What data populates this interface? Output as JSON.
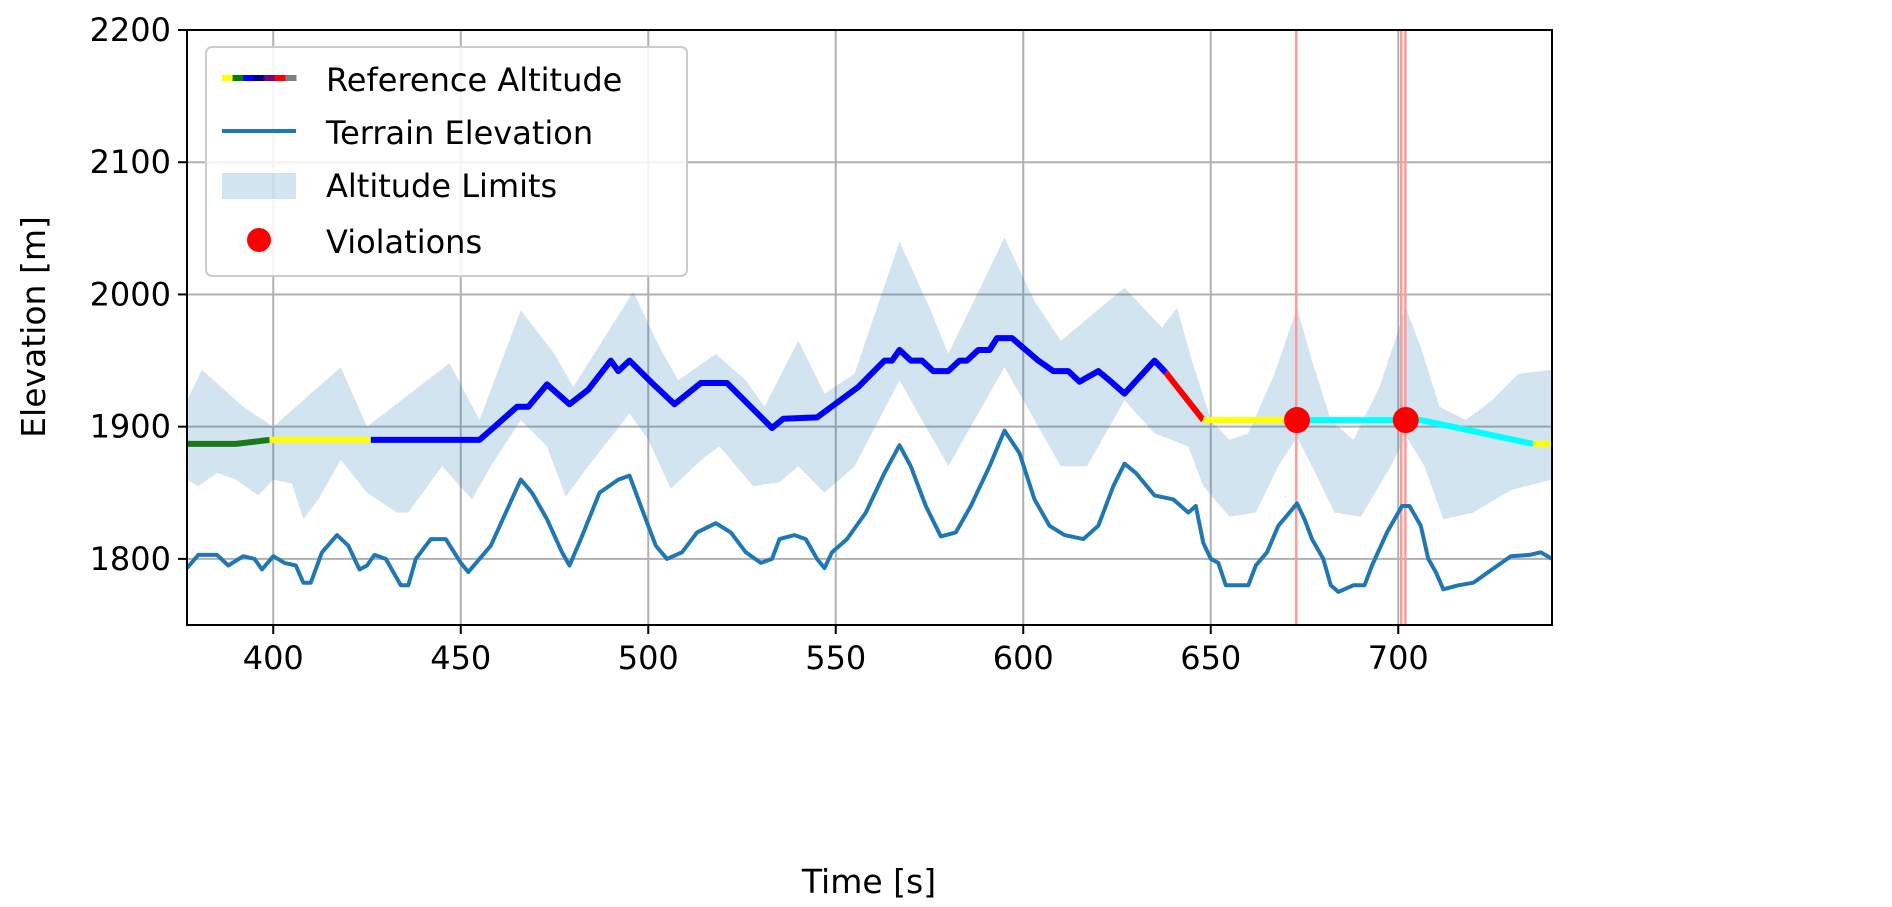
{
  "chart_data": {
    "type": "line",
    "xlabel": "Time [s]",
    "ylabel": "Elevation [m]",
    "xlim": [
      377,
      741
    ],
    "ylim": [
      1750,
      2200
    ],
    "xticks": [
      400,
      450,
      500,
      550,
      600,
      650,
      700
    ],
    "yticks": [
      1800,
      1900,
      2000,
      2100,
      2200
    ],
    "grid": true,
    "legend_position": "top-left",
    "legend": [
      "Reference Altitude",
      "Terrain Elevation",
      "Altitude Limits",
      "Violations"
    ],
    "colors": {
      "terrain": "#1f77b4",
      "limits": "#1f77b4",
      "violation": "#ff0000",
      "violation_line": "#ff9a9a",
      "grid": "#b0b0b0"
    },
    "legend_swatch_colors": [
      "#ffff00",
      "#008000",
      "#0000ff",
      "#00008b",
      "#800080",
      "#ff0000",
      "#808080"
    ],
    "reference_altitude": [
      {
        "color": "#1a7a1a",
        "x": [
          377,
          390,
          399
        ],
        "y": [
          1887,
          1887,
          1890
        ]
      },
      {
        "color": "#ffff00",
        "x": [
          399,
          426
        ],
        "y": [
          1890,
          1890
        ]
      },
      {
        "color": "#0000ff",
        "x": [
          426,
          455,
          459,
          465,
          468,
          473,
          479,
          484,
          490,
          492,
          495,
          501,
          507,
          514,
          521,
          533,
          536,
          545,
          556,
          563,
          565,
          567,
          570,
          573,
          576,
          580,
          583,
          585,
          588,
          591,
          593,
          597,
          604,
          608,
          612,
          615,
          620,
          623,
          627,
          635,
          638
        ],
        "y": [
          1890,
          1890,
          1900,
          1915,
          1915,
          1932,
          1917,
          1928,
          1950,
          1942,
          1950,
          1933,
          1917,
          1933,
          1933,
          1899,
          1906,
          1907,
          1930,
          1950,
          1950,
          1958,
          1950,
          1950,
          1942,
          1942,
          1950,
          1950,
          1958,
          1958,
          1967,
          1967,
          1950,
          1942,
          1942,
          1934,
          1942,
          1935,
          1925,
          1950,
          1941
        ]
      },
      {
        "color": "#ff0000",
        "x": [
          638,
          648
        ],
        "y": [
          1941,
          1905
        ]
      },
      {
        "color": "#ffff00",
        "x": [
          648,
          675
        ],
        "y": [
          1905,
          1905
        ]
      },
      {
        "color": "#00ffff",
        "x": [
          675,
          706,
          736
        ],
        "y": [
          1905,
          1905,
          1887
        ]
      },
      {
        "color": "#ffff00",
        "x": [
          736,
          741
        ],
        "y": [
          1887,
          1887
        ]
      }
    ],
    "terrain": {
      "x": [
        377,
        380,
        385,
        388,
        392,
        395,
        397,
        400,
        403,
        406,
        408,
        410,
        413,
        417,
        420,
        423,
        425,
        427,
        430,
        432,
        434,
        436,
        438,
        442,
        446,
        450,
        452,
        455,
        458,
        462,
        466,
        469,
        473,
        477,
        479,
        482,
        487,
        492,
        495,
        498,
        502,
        505,
        509,
        513,
        518,
        522,
        526,
        530,
        533,
        535,
        539,
        542,
        545,
        547,
        549,
        553,
        558,
        563,
        567,
        570,
        574,
        578,
        582,
        586,
        591,
        595,
        599,
        603,
        607,
        611,
        616,
        620,
        624,
        627,
        630,
        635,
        640,
        644,
        646,
        648,
        650,
        652,
        654,
        657,
        660,
        662,
        665,
        668,
        671,
        673,
        675,
        677,
        680,
        682,
        684,
        688,
        691,
        693,
        697,
        701,
        703,
        706,
        708,
        710,
        712,
        716,
        720,
        725,
        730,
        735,
        738,
        741
      ],
      "y": [
        1793,
        1803,
        1803,
        1795,
        1802,
        1800,
        1792,
        1802,
        1797,
        1795,
        1782,
        1782,
        1805,
        1818,
        1810,
        1792,
        1795,
        1803,
        1800,
        1790,
        1780,
        1780,
        1800,
        1815,
        1815,
        1797,
        1790,
        1800,
        1810,
        1835,
        1860,
        1850,
        1830,
        1805,
        1795,
        1815,
        1850,
        1860,
        1863,
        1840,
        1810,
        1800,
        1805,
        1820,
        1827,
        1820,
        1805,
        1797,
        1800,
        1815,
        1818,
        1815,
        1800,
        1793,
        1805,
        1815,
        1835,
        1865,
        1886,
        1870,
        1840,
        1817,
        1820,
        1840,
        1870,
        1897,
        1880,
        1845,
        1825,
        1818,
        1815,
        1825,
        1855,
        1872,
        1865,
        1848,
        1845,
        1835,
        1840,
        1812,
        1800,
        1797,
        1780,
        1780,
        1780,
        1795,
        1805,
        1825,
        1835,
        1842,
        1830,
        1815,
        1800,
        1780,
        1775,
        1780,
        1780,
        1795,
        1820,
        1840,
        1840,
        1825,
        1800,
        1790,
        1777,
        1780,
        1782,
        1792,
        1802,
        1803,
        1805,
        1800
      ]
    },
    "altitude_limits": {
      "upper": {
        "x": [
          377,
          381,
          392,
          400,
          418,
          425,
          447,
          455,
          466,
          475,
          480,
          496,
          503,
          508,
          518,
          526,
          531,
          540,
          547,
          555,
          567,
          575,
          580,
          595,
          603,
          610,
          627,
          632,
          637,
          641,
          645,
          650,
          655,
          660,
          667,
          673,
          677,
          682,
          688,
          695,
          702,
          706,
          711,
          718,
          725,
          732,
          741
        ],
        "y": [
          1920,
          1943,
          1915,
          1900,
          1945,
          1900,
          1948,
          1905,
          1988,
          1955,
          1930,
          2002,
          1960,
          1935,
          1955,
          1935,
          1915,
          1965,
          1925,
          1940,
          2040,
          1990,
          1955,
          2043,
          1995,
          1965,
          2005,
          1990,
          1975,
          1990,
          1950,
          1905,
          1890,
          1895,
          1940,
          1990,
          1950,
          1905,
          1890,
          1930,
          1990,
          1960,
          1915,
          1905,
          1920,
          1940,
          1943
        ]
      },
      "lower": {
        "x": [
          377,
          380,
          385,
          390,
          396,
          400,
          405,
          408,
          412,
          418,
          425,
          433,
          436,
          445,
          453,
          458,
          466,
          473,
          478,
          484,
          495,
          500,
          506,
          515,
          519,
          528,
          535,
          540,
          547,
          555,
          567,
          575,
          580,
          595,
          603,
          610,
          617,
          627,
          635,
          644,
          648,
          655,
          662,
          668,
          673,
          677,
          683,
          690,
          698,
          702,
          707,
          712,
          720,
          730,
          741
        ],
        "y": [
          1860,
          1855,
          1865,
          1860,
          1848,
          1860,
          1857,
          1830,
          1845,
          1875,
          1850,
          1835,
          1835,
          1870,
          1845,
          1870,
          1905,
          1885,
          1847,
          1870,
          1910,
          1890,
          1853,
          1877,
          1885,
          1855,
          1858,
          1870,
          1850,
          1870,
          1935,
          1895,
          1870,
          1945,
          1905,
          1870,
          1870,
          1920,
          1895,
          1885,
          1855,
          1832,
          1835,
          1870,
          1892,
          1870,
          1835,
          1832,
          1870,
          1893,
          1870,
          1830,
          1835,
          1852,
          1860
        ]
      }
    },
    "violations": {
      "x": [
        673,
        702
      ],
      "y": [
        1905,
        1905
      ]
    },
    "violation_lines_x": [
      672.8,
      700.8,
      701.9
    ]
  }
}
